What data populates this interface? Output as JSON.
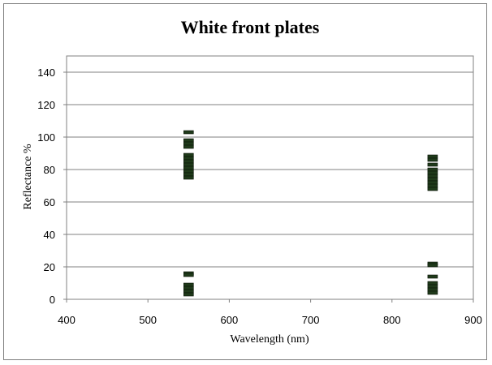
{
  "chart_data": {
    "type": "scatter",
    "title": "White front plates",
    "xlabel": "Wavelength (nm)",
    "ylabel": "Reflectance %",
    "xlim": [
      400,
      900
    ],
    "ylim": [
      0,
      150
    ],
    "xticks": [
      "400",
      "500",
      "600",
      "700",
      "800",
      "900"
    ],
    "yticks": [
      "0",
      "20",
      "40",
      "60",
      "80",
      "100",
      "120",
      "140"
    ],
    "grid": "horizontal",
    "legend": "none",
    "marker": "dash",
    "marker_color": "#1f3a1a",
    "series": [
      {
        "points": [
          {
            "x": 550,
            "y": 103
          },
          {
            "x": 550,
            "y": 98
          },
          {
            "x": 550,
            "y": 96
          },
          {
            "x": 550,
            "y": 94
          },
          {
            "x": 550,
            "y": 89
          },
          {
            "x": 550,
            "y": 87
          },
          {
            "x": 550,
            "y": 85
          },
          {
            "x": 550,
            "y": 83
          },
          {
            "x": 550,
            "y": 81
          },
          {
            "x": 550,
            "y": 79
          },
          {
            "x": 550,
            "y": 77
          },
          {
            "x": 550,
            "y": 75
          },
          {
            "x": 550,
            "y": 16
          },
          {
            "x": 550,
            "y": 15
          },
          {
            "x": 550,
            "y": 9
          },
          {
            "x": 550,
            "y": 7
          },
          {
            "x": 550,
            "y": 5
          },
          {
            "x": 550,
            "y": 3
          },
          {
            "x": 850,
            "y": 88
          },
          {
            "x": 850,
            "y": 86
          },
          {
            "x": 850,
            "y": 83
          },
          {
            "x": 850,
            "y": 80
          },
          {
            "x": 850,
            "y": 78
          },
          {
            "x": 850,
            "y": 76
          },
          {
            "x": 850,
            "y": 74
          },
          {
            "x": 850,
            "y": 72
          },
          {
            "x": 850,
            "y": 70
          },
          {
            "x": 850,
            "y": 68
          },
          {
            "x": 850,
            "y": 22
          },
          {
            "x": 850,
            "y": 21
          },
          {
            "x": 850,
            "y": 14
          },
          {
            "x": 850,
            "y": 10
          },
          {
            "x": 850,
            "y": 8
          },
          {
            "x": 850,
            "y": 6
          },
          {
            "x": 850,
            "y": 4
          }
        ]
      }
    ]
  }
}
